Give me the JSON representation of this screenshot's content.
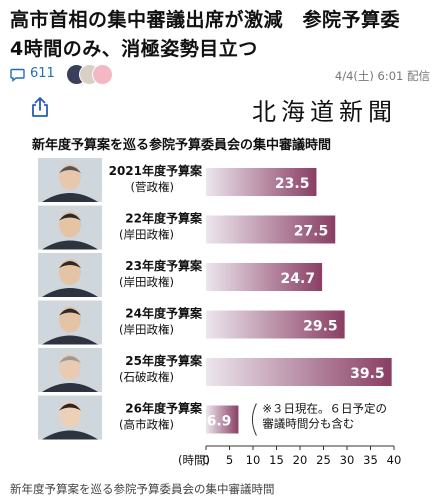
{
  "article": {
    "headline": "高市首相の集中審議出席が激減　参院予算委　4時間のみ、消極姿勢目立つ",
    "comment_count": "611",
    "date": "4/4(土) 6:01 配信",
    "source_logo": "北海道新聞",
    "caption": "新年度予算案を巡る参院予算委員会の集中審議時間"
  },
  "icons": {
    "comment": "comment-icon",
    "share": "share-icon",
    "reactions": [
      "reaction-avatar-icon",
      "reaction-avatar-icon",
      "reaction-avatar-icon"
    ]
  },
  "colors": {
    "bar_start": "#ece6ee",
    "bar_end": "#8a3e63",
    "link": "#1f6fb2"
  },
  "chart_data": {
    "type": "bar",
    "orientation": "horizontal",
    "title": "新年度予算案を巡る参院予算委員会の集中審議時間",
    "categories": [
      {
        "name": "2021年度予算案",
        "sub": "(菅政権)"
      },
      {
        "name": "22年度予算案",
        "sub": "(岸田政権)"
      },
      {
        "name": "23年度予算案",
        "sub": "(岸田政権)"
      },
      {
        "name": "24年度予算案",
        "sub": "(岸田政権)"
      },
      {
        "name": "25年度予算案",
        "sub": "(石破政権)"
      },
      {
        "name": "26年度予算案",
        "sub": "(高市政権)"
      }
    ],
    "values": [
      23.5,
      27.5,
      24.7,
      29.5,
      39.5,
      6.9
    ],
    "value_labels": [
      "23.5",
      "27.5",
      "24.7",
      "29.5",
      "39.5",
      "6.9"
    ],
    "xlabel": "(時間)",
    "xlim": [
      0,
      40
    ],
    "xticks": [
      "0",
      "5",
      "10",
      "15",
      "20",
      "25",
      "30",
      "35",
      "40"
    ],
    "annotation": [
      "※３日現在。６日予定の",
      "審議時間分も含む"
    ],
    "grid": false
  }
}
